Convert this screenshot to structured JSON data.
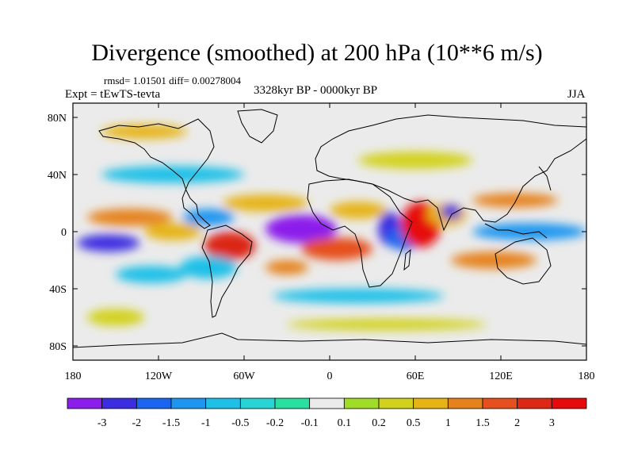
{
  "chart_data": {
    "type": "heatmap",
    "title": "Divergence (smoothed) at 200 hPa (10**6 m/s)",
    "stats": "rmsd= 1.01501 diff= 0.00278004",
    "experiment": "Expt = tEwTS-tevta",
    "period": "3328kyr BP - 0000kyr BP",
    "season": "JJA",
    "x_ticks": [
      "180",
      "120W",
      "60W",
      "0",
      "60E",
      "120E",
      "180"
    ],
    "y_ticks": [
      "80N",
      "40N",
      "0",
      "40S",
      "80S"
    ],
    "xlim": [
      -180,
      180
    ],
    "ylim": [
      -90,
      90
    ],
    "x_tick_values": [
      -180,
      -120,
      -60,
      0,
      60,
      120,
      180
    ],
    "y_tick_values": [
      80,
      40,
      0,
      -40,
      -80
    ],
    "colorbar": {
      "labels": [
        "-3",
        "-2",
        "-1.5",
        "-1",
        "-0.5",
        "-0.2",
        "-0.1",
        "0.1",
        "0.2",
        "0.5",
        "1",
        "1.5",
        "2",
        "3"
      ],
      "colors": [
        "#8c1eeb",
        "#3c2ee0",
        "#1a66f0",
        "#1e96f0",
        "#1ec0e8",
        "#2ad4d4",
        "#2ae0a0",
        "#ebebeb",
        "#a0dc28",
        "#d2d21e",
        "#e6b414",
        "#e6821e",
        "#e6501e",
        "#dc2814",
        "#e60a0a"
      ]
    },
    "regions": [
      {
        "lon": -155,
        "lat": -8,
        "rx": 22,
        "ry": 6,
        "value": -2.2
      },
      {
        "lon": -140,
        "lat": 10,
        "rx": 30,
        "ry": 6,
        "value": 1.2
      },
      {
        "lon": -125,
        "lat": -30,
        "rx": 25,
        "ry": 6,
        "value": -1.0
      },
      {
        "lon": -110,
        "lat": 0,
        "rx": 20,
        "ry": 6,
        "value": 0.7
      },
      {
        "lon": -85,
        "lat": 10,
        "rx": 18,
        "ry": 6,
        "value": -1.2
      },
      {
        "lon": -70,
        "lat": -10,
        "rx": 18,
        "ry": 10,
        "value": 2.0
      },
      {
        "lon": -85,
        "lat": -25,
        "rx": 20,
        "ry": 8,
        "value": -0.8
      },
      {
        "lon": -45,
        "lat": 20,
        "rx": 30,
        "ry": 6,
        "value": 0.7
      },
      {
        "lon": -20,
        "lat": 2,
        "rx": 25,
        "ry": 10,
        "value": -3.2
      },
      {
        "lon": 5,
        "lat": -12,
        "rx": 25,
        "ry": 8,
        "value": 1.6
      },
      {
        "lon": 20,
        "lat": 15,
        "rx": 20,
        "ry": 6,
        "value": 0.8
      },
      {
        "lon": 42,
        "lat": 2,
        "rx": 8,
        "ry": 12,
        "value": -2.5
      },
      {
        "lon": 52,
        "lat": -5,
        "rx": 12,
        "ry": 8,
        "value": -2.0
      },
      {
        "lon": 64,
        "lat": 5,
        "rx": 14,
        "ry": 16,
        "value": 3.2
      },
      {
        "lon": 82,
        "lat": 12,
        "rx": 14,
        "ry": 8,
        "value": 0.6
      },
      {
        "lon": 85,
        "lat": 14,
        "rx": 7,
        "ry": 5,
        "value": -2.2
      },
      {
        "lon": 140,
        "lat": 0,
        "rx": 40,
        "ry": 6,
        "value": -1.5
      },
      {
        "lon": 130,
        "lat": 22,
        "rx": 30,
        "ry": 5,
        "value": 1.0
      },
      {
        "lon": 20,
        "lat": -45,
        "rx": 60,
        "ry": 5,
        "value": -0.7
      },
      {
        "lon": -30,
        "lat": -25,
        "rx": 15,
        "ry": 5,
        "value": 1.0
      },
      {
        "lon": 115,
        "lat": -20,
        "rx": 30,
        "ry": 6,
        "value": 1.0
      },
      {
        "lon": -110,
        "lat": 40,
        "rx": 50,
        "ry": 6,
        "value": -0.6
      },
      {
        "lon": 60,
        "lat": 50,
        "rx": 40,
        "ry": 6,
        "value": 0.3
      },
      {
        "lon": -130,
        "lat": 70,
        "rx": 30,
        "ry": 5,
        "value": 0.5
      },
      {
        "lon": 40,
        "lat": -65,
        "rx": 70,
        "ry": 4,
        "value": 0.3
      },
      {
        "lon": -150,
        "lat": -60,
        "rx": 20,
        "ry": 6,
        "value": 0.3
      }
    ]
  }
}
